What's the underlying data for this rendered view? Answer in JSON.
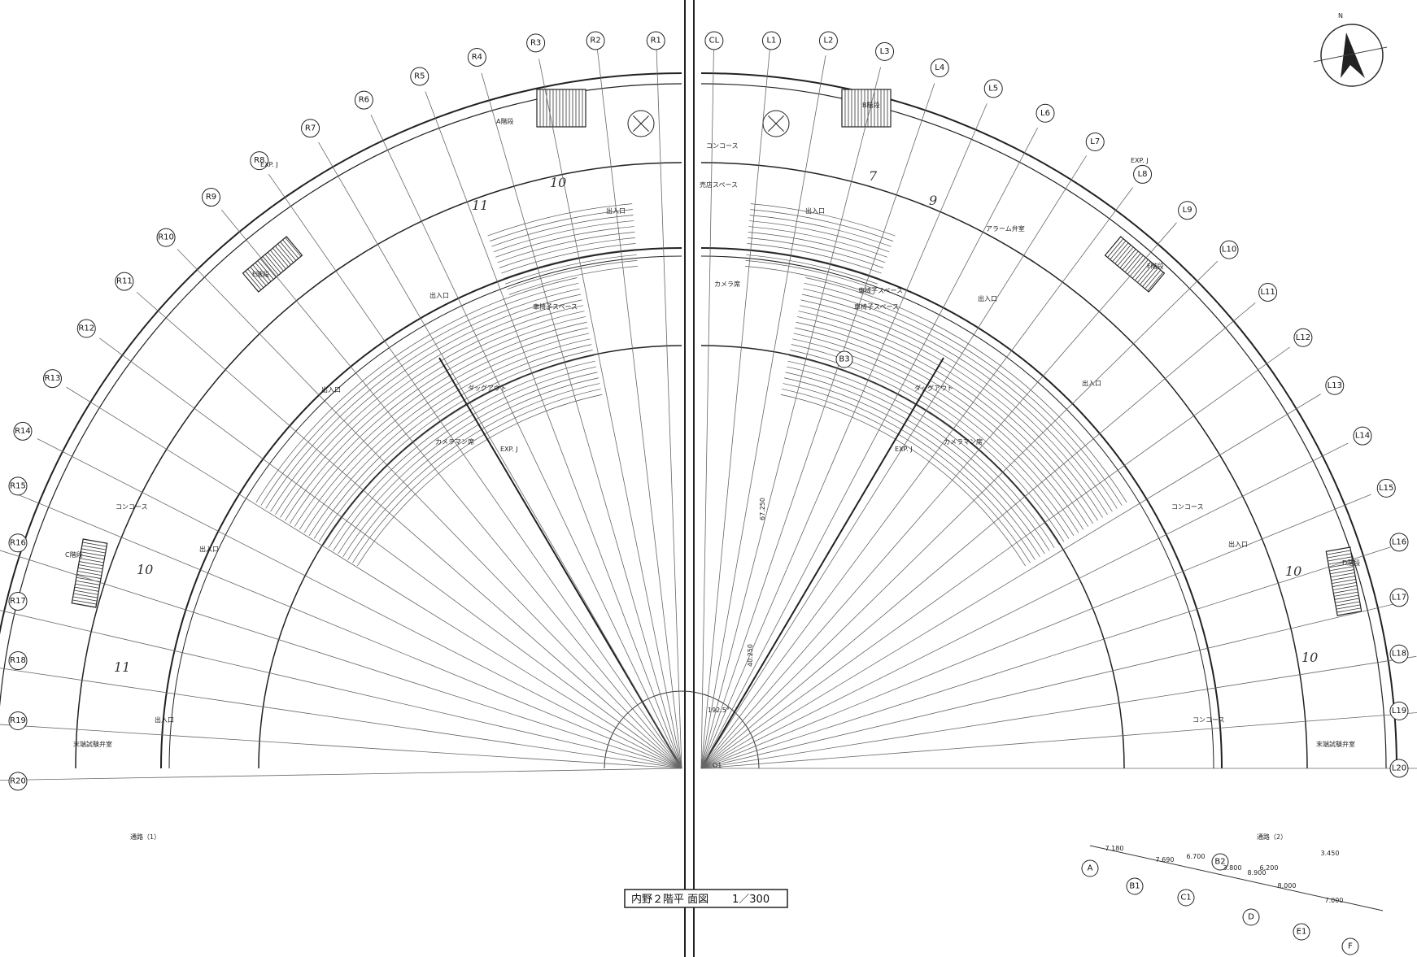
{
  "drawing": {
    "title": "内野２階平 面図",
    "scale": "1／300",
    "north": "N",
    "origin": "O1",
    "angle_text": "192.5°",
    "dim_vertical_1": "67.250",
    "dim_vertical_2": "40.250"
  },
  "radial_tags_right": [
    "R1",
    "R2",
    "R3",
    "R4",
    "R5",
    "R6",
    "R7",
    "R8",
    "R9",
    "R10",
    "R11",
    "R12",
    "R13",
    "R14",
    "R15",
    "R16",
    "R17",
    "R18",
    "R19",
    "R20"
  ],
  "radial_tags_left": [
    "CL",
    "L1",
    "L2",
    "L3",
    "L4",
    "L5",
    "L6",
    "L7",
    "L8",
    "L9",
    "L10",
    "L11",
    "L12",
    "L13",
    "L14",
    "L15",
    "L16",
    "L17",
    "L18",
    "L19",
    "L20"
  ],
  "ring_tags": [
    "A",
    "B1",
    "C1",
    "D",
    "E1",
    "F"
  ],
  "extra_tags": [
    "B2",
    "B3"
  ],
  "dimensions": [
    "7.180",
    "7.690",
    "8.900",
    "8.000",
    "7.000",
    "6.200",
    "3.800",
    "6.700",
    "3.450"
  ],
  "room_labels": [
    {
      "text": "コンコース"
    },
    {
      "text": "売店スペース"
    },
    {
      "text": "出入口"
    },
    {
      "text": "出入口"
    },
    {
      "text": "出入口"
    },
    {
      "text": "出入口"
    },
    {
      "text": "出入口"
    },
    {
      "text": "出入口"
    },
    {
      "text": "出入口"
    },
    {
      "text": "出入口"
    },
    {
      "text": "出入口"
    },
    {
      "text": "コンコース"
    },
    {
      "text": "コンコース"
    },
    {
      "text": "コンコース"
    },
    {
      "text": "ダッグアウト"
    },
    {
      "text": "ダッグアウト"
    },
    {
      "text": "カメラマン席"
    },
    {
      "text": "カメラマン席"
    },
    {
      "text": "カメラ席"
    },
    {
      "text": "車椅子スペース"
    },
    {
      "text": "車椅子スペース"
    },
    {
      "text": "車椅子スペース"
    },
    {
      "text": "アラーム弁室"
    },
    {
      "text": "末端試験弁室"
    },
    {
      "text": "末端試験弁室"
    },
    {
      "text": "通路（1）"
    },
    {
      "text": "通路（2）"
    },
    {
      "text": "A階段"
    },
    {
      "text": "B階段"
    },
    {
      "text": "C階段"
    },
    {
      "text": "D階段"
    },
    {
      "text": "E階段"
    },
    {
      "text": "F階段"
    },
    {
      "text": "EXP. J"
    },
    {
      "text": "EXP. J"
    },
    {
      "text": "EXP. J"
    },
    {
      "text": "EXP. J"
    }
  ],
  "handwritten": [
    "10",
    "11",
    "9",
    "7",
    "10",
    "11",
    "10",
    "10"
  ]
}
